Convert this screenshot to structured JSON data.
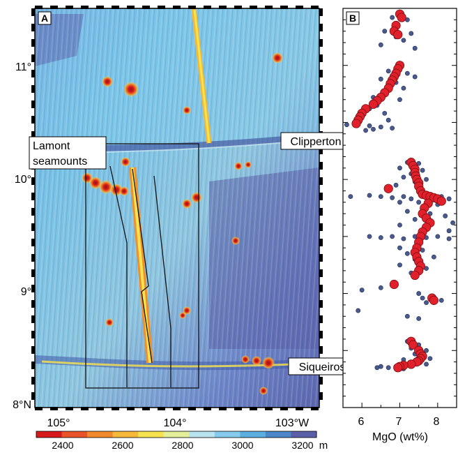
{
  "panel_a": {
    "label": "A",
    "lat_ticks": [
      "11°",
      "10°",
      "9°",
      "8°N"
    ],
    "lon_ticks": [
      "105°",
      "104°",
      "103°W"
    ],
    "callouts": {
      "lamont_line1": "Lamont",
      "lamont_line2": "seamounts",
      "clipperton": "Clipperton",
      "siqueiros": "Siqueiros"
    },
    "colorbar": {
      "ticks": [
        "2400",
        "2600",
        "2800",
        "3000",
        "3200"
      ],
      "unit": "m",
      "colors": [
        "#d7191c",
        "#e8532a",
        "#f08a2c",
        "#f6b93a",
        "#f7e34f",
        "#e4ef9a",
        "#b9e3ef",
        "#86cbeb",
        "#5aaee0",
        "#4d86c9",
        "#5b5fa8"
      ]
    }
  },
  "panel_b": {
    "label": "B",
    "x_ticks": [
      "6",
      "7",
      "8"
    ],
    "x_label": "MgO (wt%)"
  },
  "chart_data": {
    "type": "scatter",
    "x_label": "MgO (wt%)",
    "xlim": [
      5.5,
      8.5
    ],
    "ylim": [
      8.0,
      11.5
    ],
    "grid": false,
    "series": [
      {
        "color": "#4a5a8c",
        "points": [
          [
            7.0,
            11.45
          ],
          [
            6.8,
            11.42
          ],
          [
            7.2,
            11.4
          ],
          [
            6.6,
            11.3
          ],
          [
            7.3,
            11.28
          ],
          [
            6.9,
            11.25
          ],
          [
            7.1,
            11.22
          ],
          [
            6.5,
            11.18
          ],
          [
            7.4,
            11.15
          ],
          [
            6.7,
            10.95
          ],
          [
            7.2,
            10.93
          ],
          [
            7.4,
            10.9
          ],
          [
            6.5,
            10.88
          ],
          [
            6.9,
            10.85
          ],
          [
            7.1,
            10.8
          ],
          [
            6.6,
            10.75
          ],
          [
            6.3,
            10.72
          ],
          [
            7.0,
            10.7
          ],
          [
            6.4,
            10.65
          ],
          [
            6.2,
            10.62
          ],
          [
            6.6,
            10.58
          ],
          [
            6.0,
            10.55
          ],
          [
            6.7,
            10.52
          ],
          [
            5.9,
            10.5
          ],
          [
            5.6,
            10.48
          ],
          [
            6.2,
            10.47
          ],
          [
            6.5,
            10.46
          ],
          [
            6.8,
            10.45
          ],
          [
            6.3,
            10.44
          ],
          [
            6.1,
            10.43
          ],
          [
            7.2,
            10.15
          ],
          [
            7.5,
            10.14
          ],
          [
            7.0,
            10.1
          ],
          [
            7.6,
            10.08
          ],
          [
            7.3,
            10.05
          ],
          [
            7.1,
            10.02
          ],
          [
            7.7,
            10.0
          ],
          [
            7.4,
            9.98
          ],
          [
            6.9,
            9.95
          ],
          [
            5.7,
            9.85
          ],
          [
            6.2,
            9.86
          ],
          [
            6.5,
            9.85
          ],
          [
            6.8,
            9.84
          ],
          [
            7.1,
            9.85
          ],
          [
            7.3,
            9.83
          ],
          [
            7.6,
            9.86
          ],
          [
            7.9,
            9.84
          ],
          [
            8.1,
            9.85
          ],
          [
            8.3,
            9.83
          ],
          [
            7.0,
            9.8
          ],
          [
            7.5,
            9.8
          ],
          [
            8.0,
            9.78
          ],
          [
            7.2,
            9.72
          ],
          [
            7.8,
            9.7
          ],
          [
            8.2,
            9.68
          ],
          [
            7.4,
            9.65
          ],
          [
            8.4,
            9.62
          ],
          [
            7.0,
            9.6
          ],
          [
            7.7,
            9.58
          ],
          [
            8.3,
            9.55
          ],
          [
            6.2,
            9.5
          ],
          [
            6.5,
            9.49
          ],
          [
            6.8,
            9.5
          ],
          [
            7.1,
            9.48
          ],
          [
            7.4,
            9.5
          ],
          [
            7.7,
            9.49
          ],
          [
            8.0,
            9.5
          ],
          [
            8.3,
            9.48
          ],
          [
            7.5,
            9.45
          ],
          [
            7.0,
            9.4
          ],
          [
            7.6,
            9.38
          ],
          [
            7.2,
            9.35
          ],
          [
            7.9,
            9.32
          ],
          [
            7.4,
            9.3
          ],
          [
            7.0,
            9.25
          ],
          [
            7.7,
            9.22
          ],
          [
            7.3,
            9.18
          ],
          [
            6.8,
            9.08
          ],
          [
            6.5,
            9.05
          ],
          [
            6.0,
            9.03
          ],
          [
            7.5,
            9.0
          ],
          [
            7.6,
            8.96
          ],
          [
            7.9,
            8.95
          ],
          [
            8.1,
            8.94
          ],
          [
            7.7,
            8.92
          ],
          [
            5.9,
            8.85
          ],
          [
            7.2,
            8.8
          ],
          [
            7.5,
            8.78
          ],
          [
            7.2,
            8.58
          ],
          [
            7.5,
            8.55
          ],
          [
            7.3,
            8.52
          ],
          [
            7.7,
            8.5
          ],
          [
            7.4,
            8.47
          ],
          [
            7.6,
            8.45
          ],
          [
            7.8,
            8.43
          ],
          [
            7.1,
            8.42
          ],
          [
            7.5,
            8.4
          ],
          [
            7.7,
            8.38
          ],
          [
            7.3,
            8.37
          ],
          [
            6.5,
            8.36
          ],
          [
            6.7,
            8.35
          ],
          [
            6.9,
            8.36
          ],
          [
            7.1,
            8.34
          ],
          [
            6.4,
            8.35
          ]
        ]
      },
      {
        "color": "#e0202a",
        "points": [
          [
            7.0,
            11.45
          ],
          [
            7.05,
            11.42
          ],
          [
            6.9,
            11.35
          ],
          [
            6.85,
            11.3
          ],
          [
            6.95,
            11.27
          ],
          [
            7.0,
            11.0
          ],
          [
            6.95,
            10.97
          ],
          [
            6.9,
            10.93
          ],
          [
            6.85,
            10.9
          ],
          [
            6.8,
            10.87
          ],
          [
            6.75,
            10.84
          ],
          [
            6.7,
            10.8
          ],
          [
            6.6,
            10.76
          ],
          [
            6.5,
            10.72
          ],
          [
            6.4,
            10.69
          ],
          [
            6.3,
            10.66
          ],
          [
            6.1,
            10.62
          ],
          [
            6.0,
            10.58
          ],
          [
            5.95,
            10.55
          ],
          [
            5.9,
            10.52
          ],
          [
            5.85,
            10.49
          ],
          [
            7.3,
            10.15
          ],
          [
            7.35,
            10.12
          ],
          [
            7.4,
            10.09
          ],
          [
            7.4,
            10.06
          ],
          [
            7.42,
            10.03
          ],
          [
            7.45,
            10.0
          ],
          [
            7.5,
            9.97
          ],
          [
            7.5,
            9.94
          ],
          [
            6.7,
            9.92
          ],
          [
            7.55,
            9.9
          ],
          [
            7.6,
            9.87
          ],
          [
            7.7,
            9.86
          ],
          [
            7.8,
            9.85
          ],
          [
            7.9,
            9.84
          ],
          [
            8.0,
            9.83
          ],
          [
            8.1,
            9.81
          ],
          [
            7.75,
            9.79
          ],
          [
            7.65,
            9.75
          ],
          [
            7.6,
            9.7
          ],
          [
            7.7,
            9.66
          ],
          [
            7.8,
            9.62
          ],
          [
            7.7,
            9.58
          ],
          [
            7.6,
            9.54
          ],
          [
            7.55,
            9.5
          ],
          [
            7.5,
            9.45
          ],
          [
            7.45,
            9.4
          ],
          [
            7.4,
            9.36
          ],
          [
            7.45,
            9.32
          ],
          [
            7.5,
            9.28
          ],
          [
            7.55,
            9.24
          ],
          [
            7.5,
            9.2
          ],
          [
            7.4,
            9.16
          ],
          [
            6.85,
            9.08
          ],
          [
            7.85,
            8.96
          ],
          [
            7.9,
            8.94
          ],
          [
            7.3,
            8.58
          ],
          [
            7.35,
            8.55
          ],
          [
            7.5,
            8.5
          ],
          [
            7.55,
            8.47
          ],
          [
            7.6,
            8.45
          ],
          [
            7.55,
            8.43
          ],
          [
            7.5,
            8.41
          ],
          [
            7.45,
            8.4
          ],
          [
            7.3,
            8.38
          ],
          [
            7.1,
            8.37
          ],
          [
            7.0,
            8.36
          ],
          [
            6.95,
            8.35
          ]
        ]
      }
    ]
  }
}
